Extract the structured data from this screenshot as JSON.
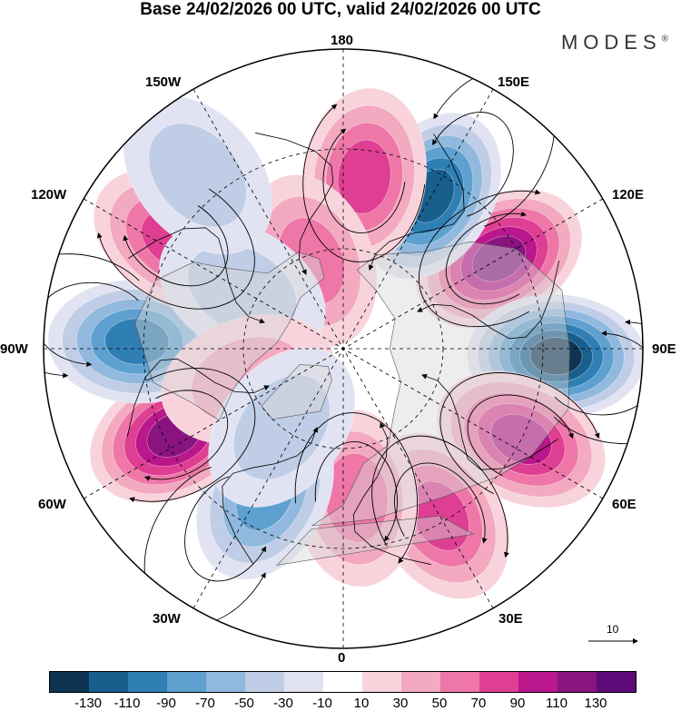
{
  "title": "Base 24/02/2026 00 UTC, valid 24/02/2026 00 UTC",
  "brand": {
    "text": "MODES",
    "mark": "®"
  },
  "longitude_labels": {
    "n180": "180",
    "w150": "150W",
    "e150": "150E",
    "w120": "120W",
    "e120": "120E",
    "w90": "90W",
    "e90": "90E",
    "w60": "60W",
    "e60": "60E",
    "w30": "30W",
    "e30": "30E",
    "s0": "0"
  },
  "colorbar": {
    "colors": [
      "#0d3553",
      "#185f8e",
      "#2f7fb5",
      "#5ea0cf",
      "#91b9de",
      "#c0cde6",
      "#e2e3f2",
      "#ffffff",
      "#f8d3dc",
      "#f3a9c0",
      "#ee77a8",
      "#de3f92",
      "#b9178b",
      "#891480",
      "#5d0b78"
    ],
    "ticks": [
      "-130",
      "-110",
      "-90",
      "-70",
      "-50",
      "-30",
      "-10",
      "10",
      "30",
      "50",
      "70",
      "90",
      "110",
      "130"
    ]
  },
  "reference_vector": {
    "value": "10"
  },
  "anomaly_centers": [
    {
      "lon": 120,
      "lat": 36,
      "value": 120
    },
    {
      "lon": 150,
      "lat": 37,
      "value": -120
    },
    {
      "lon": 173,
      "lat": 38,
      "value": 80
    },
    {
      "lon": 88,
      "lat": 26,
      "value": -130
    },
    {
      "lon": 63,
      "lat": 30,
      "value": 100
    },
    {
      "lon": 30,
      "lat": 32,
      "value": 70
    },
    {
      "lon": 5,
      "lat": 45,
      "value": 60
    },
    {
      "lon": -28,
      "lat": 40,
      "value": -80
    },
    {
      "lon": -63,
      "lat": 33,
      "value": 110
    },
    {
      "lon": -92,
      "lat": 28,
      "value": -100
    },
    {
      "lon": -123,
      "lat": 30,
      "value": 70
    },
    {
      "lon": -160,
      "lat": 62,
      "value": 50
    },
    {
      "lon": -120,
      "lat": 55,
      "value": -40
    },
    {
      "lon": -72,
      "lat": 60,
      "value": 30
    },
    {
      "lon": -140,
      "lat": 22,
      "value": -40
    },
    {
      "lon": -38,
      "lat": 60,
      "value": -30
    }
  ]
}
